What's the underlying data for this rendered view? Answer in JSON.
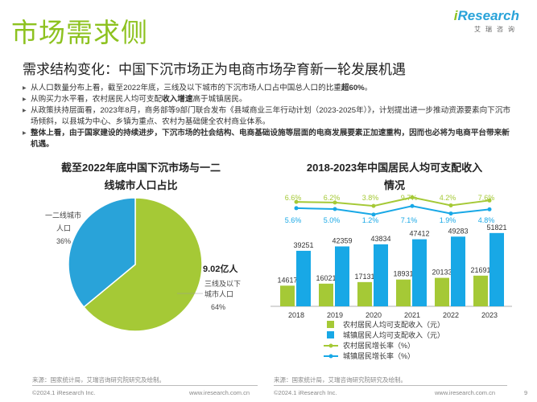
{
  "page": {
    "title": "市场需求侧",
    "subtitle": "需求结构变化：中国下沉市场正为电商市场孕育新一轮发展机遇",
    "logo": {
      "brand_i": "i",
      "brand_rest": "Research",
      "sub": "艾瑞咨询"
    },
    "bullets": [
      {
        "pre": "从人口数量分布上看，截至2022年底，三线及以下城市的下沉市场人口占中国总人口的比重",
        "bold": "超60%",
        "post": "。"
      },
      {
        "pre": "从购买力水平看，农村居民人均可支配",
        "bold": "收入增速",
        "post": "高于城镇居民。"
      },
      {
        "pre": "从政策扶持层面看，2023年8月，商务部等9部门联合发布《县域商业三年行动计划（2023-2025年）》，计划提出进一步推动资源要素向下沉市场倾斜，以县城为中心、乡镇为重点、农村为基础健全农村商业体系。",
        "bold": "",
        "post": ""
      },
      {
        "pre": "",
        "bold": "整体上看，由于国家建设的持续进步，下沉市场的社会结构、电商基础设施等层面的电商发展要素正加速重构，因而也必将为电商平台带来新机遇。",
        "post": ""
      }
    ],
    "footer_left": {
      "source": "来源：国家统计局，艾瑞咨询研究院研究及绘制。",
      "copyright": "©2024.1 iResearch Inc.",
      "url": "www.iresearch.com.cn"
    },
    "footer_right": {
      "source": "来源：国家统计局，艾瑞咨询研究院研究及绘制。",
      "copyright": "©2024.1 iResearch Inc.",
      "url": "www.iresearch.com.cn",
      "page_number": "9"
    }
  },
  "chart_data": [
    {
      "type": "pie",
      "title_line1": "截至2022年底中国下沉市场与一二",
      "title_line2": "线城市人口占比",
      "slices": [
        {
          "label_line1": "三线及以下",
          "label_line2": "城市人口",
          "value": 64,
          "pct_label": "64%",
          "color": "#a5c936"
        },
        {
          "label_line1": "一二线城市",
          "label_line2": "人口",
          "value": 36,
          "pct_label": "36%",
          "color": "#29a3d9"
        }
      ],
      "annotation": "9.02亿人"
    },
    {
      "type": "bar",
      "title_line1": "2018-2023年中国居民人均可支配收入",
      "title_line2": "情况",
      "categories": [
        "2018",
        "2019",
        "2020",
        "2021",
        "2022",
        "2023"
      ],
      "series": [
        {
          "name": "农村居民人均可支配收入（元）",
          "kind": "bar",
          "color": "#a5c936",
          "values": [
            14617,
            16021,
            17131,
            18931,
            20133,
            21691
          ]
        },
        {
          "name": "城镇居民人均可支配收入（元）",
          "kind": "bar",
          "color": "#18a8e6",
          "values": [
            39251,
            42359,
            43834,
            47412,
            49283,
            51821
          ]
        },
        {
          "name": "农村居民增长率（%）",
          "kind": "line",
          "color": "#a5c936",
          "values": [
            6.6,
            6.2,
            3.8,
            9.7,
            4.2,
            7.6
          ],
          "labels": [
            "6.6%",
            "6.2%",
            "3.8%",
            "9.7%",
            "4.2%",
            "7.6%"
          ]
        },
        {
          "name": "城镇居民增长率（%）",
          "kind": "line",
          "color": "#18a8e6",
          "values": [
            5.6,
            5.0,
            1.2,
            7.1,
            1.9,
            4.8
          ],
          "labels": [
            "5.6%",
            "5.0%",
            "1.2%",
            "7.1%",
            "1.9%",
            "4.8%"
          ]
        }
      ]
    }
  ]
}
